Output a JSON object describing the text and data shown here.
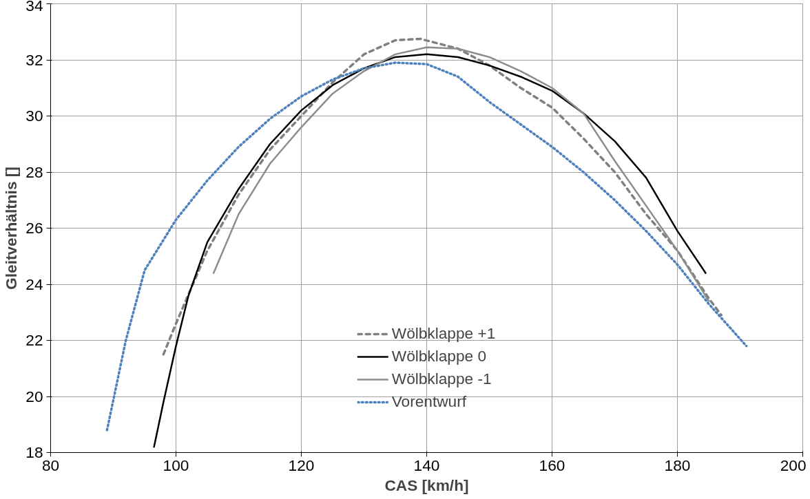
{
  "chart_data": {
    "type": "line",
    "xlabel": "CAS [km/h]",
    "ylabel": "Gleitverhältnis []",
    "xlim": [
      80,
      200
    ],
    "ylim": [
      18,
      34
    ],
    "xticks": [
      80,
      100,
      120,
      140,
      160,
      180,
      200
    ],
    "yticks": [
      18,
      20,
      22,
      24,
      26,
      28,
      30,
      32,
      34
    ],
    "grid": true,
    "legend": "bottom",
    "marker": "none",
    "series": [
      {
        "name": "Wölbklappe +1",
        "color": "#808080",
        "line_style": "dashed",
        "x": [
          98,
          100,
          105,
          110,
          115,
          120,
          125,
          130,
          135,
          139,
          145,
          150,
          155,
          160,
          165,
          170,
          175,
          180,
          185,
          187
        ],
        "values": [
          21.5,
          22.6,
          25.2,
          27.2,
          28.8,
          30.0,
          31.2,
          32.2,
          32.7,
          32.75,
          32.4,
          31.8,
          31.0,
          30.3,
          29.2,
          28.0,
          26.5,
          25.2,
          23.5,
          22.9
        ]
      },
      {
        "name": "Wölbklappe 0",
        "color": "#000000",
        "line_style": "solid",
        "x": [
          96.5,
          98,
          100,
          102,
          105,
          110,
          115,
          120,
          125,
          130,
          135,
          140,
          145,
          150,
          155,
          160,
          165,
          170,
          175,
          180,
          184.5
        ],
        "values": [
          18.2,
          19.8,
          21.8,
          23.6,
          25.5,
          27.4,
          29.0,
          30.2,
          31.1,
          31.7,
          32.1,
          32.2,
          32.1,
          31.8,
          31.4,
          30.9,
          30.1,
          29.1,
          27.8,
          25.9,
          24.4
        ]
      },
      {
        "name": "Wölbklappe -1",
        "color": "#8c8c8c",
        "line_style": "solid",
        "x": [
          106,
          110,
          115,
          120,
          125,
          130,
          135,
          140,
          145,
          150,
          155,
          160,
          165,
          170,
          175,
          180,
          185
        ],
        "values": [
          24.4,
          26.5,
          28.3,
          29.6,
          30.8,
          31.6,
          32.2,
          32.45,
          32.4,
          32.1,
          31.6,
          31.0,
          30.1,
          28.4,
          26.8,
          25.2,
          23.4
        ]
      },
      {
        "name": "Vorentwurf",
        "color": "#4f81bd",
        "line_style": "dotted",
        "x": [
          89,
          92,
          95,
          100,
          105,
          110,
          115,
          120,
          125,
          130,
          135,
          140,
          145,
          150,
          155,
          160,
          165,
          170,
          175,
          180,
          185,
          191
        ],
        "values": [
          18.8,
          22.0,
          24.5,
          26.3,
          27.7,
          28.9,
          29.9,
          30.7,
          31.3,
          31.7,
          31.9,
          31.85,
          31.4,
          30.5,
          29.7,
          28.9,
          28.0,
          27.0,
          25.9,
          24.7,
          23.3,
          21.8
        ]
      }
    ]
  }
}
